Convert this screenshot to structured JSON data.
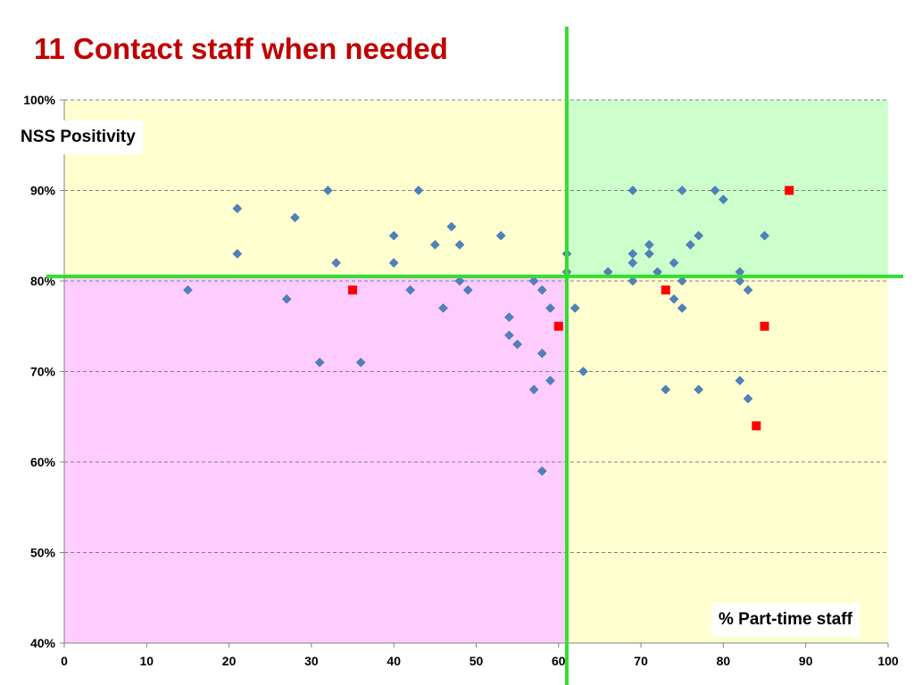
{
  "chart_data": {
    "type": "scatter",
    "title": "11 Contact staff when needed",
    "xlabel": "% Part-time staff",
    "ylabel": "NSS Positivity",
    "xlim": [
      0,
      100
    ],
    "ylim": [
      40,
      100
    ],
    "x_ticks": [
      "0",
      "10",
      "20",
      "30",
      "40",
      "50",
      "60",
      "70",
      "80",
      "90",
      "100"
    ],
    "y_ticks": [
      "40%",
      "50%",
      "60%",
      "70%",
      "80%",
      "90%",
      "100%"
    ],
    "grid": "horizontal dashed",
    "threshold_x": 61,
    "threshold_y": 80.5,
    "quadrant_colors": {
      "top_left": "#ffffd0",
      "top_right": "#ccffcc",
      "bottom_left": "#ffccff",
      "bottom_right": "#ffffd0"
    },
    "colors": {
      "threshold_line": "#33dd33",
      "series_blue": "#4f81bd",
      "series_red": "#ff0000",
      "title": "#c00000"
    },
    "series": [
      {
        "marker": "diamond",
        "color": "#4f81bd",
        "points": [
          [
            15,
            79
          ],
          [
            21,
            88
          ],
          [
            21,
            83
          ],
          [
            27,
            78
          ],
          [
            28,
            87
          ],
          [
            31,
            71
          ],
          [
            32,
            90
          ],
          [
            33,
            82
          ],
          [
            36,
            71
          ],
          [
            40,
            85
          ],
          [
            40,
            82
          ],
          [
            42,
            79
          ],
          [
            43,
            90
          ],
          [
            45,
            84
          ],
          [
            46,
            77
          ],
          [
            47,
            86
          ],
          [
            48,
            84
          ],
          [
            48,
            80
          ],
          [
            49,
            79
          ],
          [
            53,
            85
          ],
          [
            54,
            76
          ],
          [
            54,
            74
          ],
          [
            55,
            73
          ],
          [
            57,
            80
          ],
          [
            57,
            68
          ],
          [
            58,
            79
          ],
          [
            58,
            72
          ],
          [
            58,
            59
          ],
          [
            59,
            77
          ],
          [
            59,
            69
          ],
          [
            61,
            83
          ],
          [
            61,
            81
          ],
          [
            62,
            77
          ],
          [
            63,
            70
          ],
          [
            66,
            81
          ],
          [
            69,
            90
          ],
          [
            69,
            83
          ],
          [
            69,
            82
          ],
          [
            69,
            80
          ],
          [
            71,
            84
          ],
          [
            71,
            83
          ],
          [
            72,
            81
          ],
          [
            73,
            68
          ],
          [
            74,
            82
          ],
          [
            74,
            78
          ],
          [
            75,
            90
          ],
          [
            75,
            80
          ],
          [
            75,
            77
          ],
          [
            76,
            84
          ],
          [
            77,
            85
          ],
          [
            77,
            68
          ],
          [
            79,
            90
          ],
          [
            80,
            89
          ],
          [
            82,
            81
          ],
          [
            82,
            80
          ],
          [
            82,
            69
          ],
          [
            83,
            79
          ],
          [
            83,
            67
          ],
          [
            85,
            85
          ]
        ]
      },
      {
        "marker": "square",
        "color": "#ff0000",
        "points": [
          [
            35,
            79
          ],
          [
            60,
            75
          ],
          [
            73,
            79
          ],
          [
            84,
            64
          ],
          [
            85,
            75
          ],
          [
            88,
            90
          ]
        ]
      }
    ]
  }
}
